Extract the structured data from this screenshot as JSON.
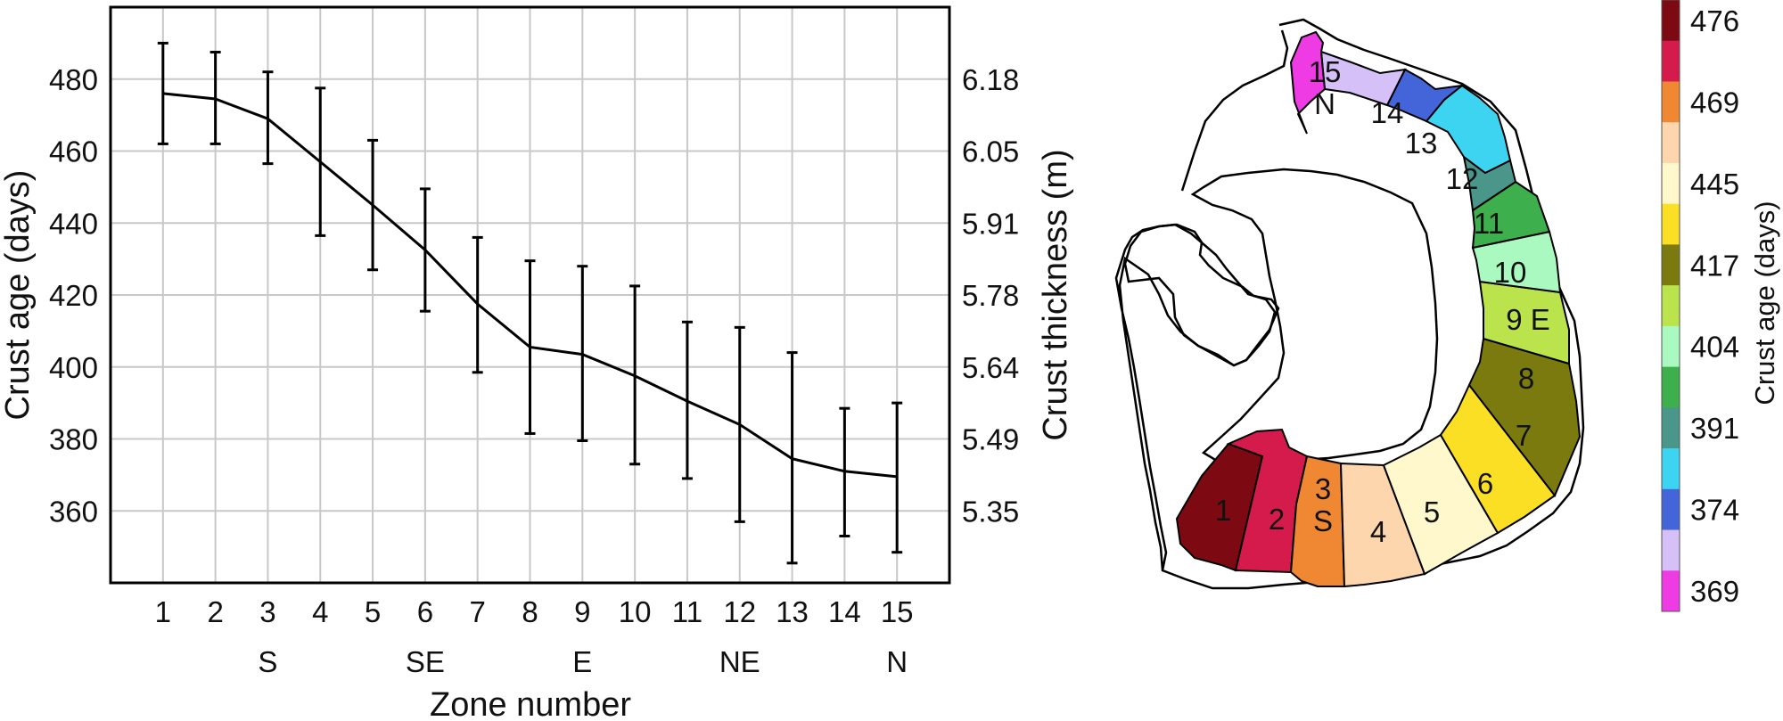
{
  "chart_data": [
    {
      "type": "line",
      "title": "",
      "xlabel": "Zone number",
      "ylabel": "Crust age (days)",
      "y2label": "Crust thickness (m)",
      "x": [
        1,
        2,
        3,
        4,
        5,
        6,
        7,
        8,
        9,
        10,
        11,
        12,
        13,
        14,
        15
      ],
      "x_ticks": [
        "1",
        "2",
        "3",
        "4",
        "5",
        "6",
        "7",
        "8",
        "9",
        "10",
        "11",
        "12",
        "13",
        "14",
        "15"
      ],
      "direction_labels": [
        {
          "x": 3,
          "label": "S"
        },
        {
          "x": 6,
          "label": "SE"
        },
        {
          "x": 9,
          "label": "E"
        },
        {
          "x": 12,
          "label": "NE"
        },
        {
          "x": 15,
          "label": "N"
        }
      ],
      "series": [
        {
          "name": "Crust age",
          "values": [
            476,
            474.5,
            469,
            457,
            445,
            432.5,
            417.5,
            405.5,
            403.5,
            397.5,
            390.5,
            384,
            374.5,
            371,
            369.5
          ],
          "error_low": [
            462,
            462,
            456.5,
            436.5,
            427,
            415.5,
            398.5,
            381.5,
            379.5,
            373,
            369,
            357,
            345.5,
            353,
            348.5
          ],
          "error_high": [
            490,
            487.5,
            482,
            477.5,
            463,
            449.5,
            436,
            429.5,
            428,
            422.5,
            412.5,
            411,
            404,
            388.5,
            390
          ]
        }
      ],
      "xlim": [
        0,
        16
      ],
      "ylim": [
        340,
        500
      ],
      "y_ticks": [
        "360",
        "380",
        "400",
        "420",
        "440",
        "460",
        "480"
      ],
      "y2_ticks": [
        "5.35",
        "5.49",
        "5.64",
        "5.78",
        "5.91",
        "6.05",
        "6.18"
      ],
      "grid": true
    },
    {
      "type": "heatmap",
      "title": "",
      "colorbar_label": "Crust age (days)",
      "colorbar_ticks": [
        "476",
        "469",
        "445",
        "417",
        "404",
        "391",
        "374",
        "369"
      ],
      "colorbar_colors": [
        "#7d0a12",
        "#d51b4c",
        "#f08732",
        "#fdd6ae",
        "#fff8cc",
        "#fadf24",
        "#7a7a0e",
        "#bbe34c",
        "#a9f9c0",
        "#3daf4c",
        "#4a968a",
        "#3dd4f2",
        "#4465d9",
        "#d6c0f8",
        "#ee3be4"
      ],
      "zones": [
        {
          "label": "1",
          "age": 476,
          "color": "#7d0a12"
        },
        {
          "label": "2",
          "age": 474.5,
          "color": "#d51b4c"
        },
        {
          "label": "3",
          "label2": "S",
          "age": 469,
          "color": "#f08732"
        },
        {
          "label": "4",
          "age": 457,
          "color": "#fdd6ae"
        },
        {
          "label": "5",
          "age": 445,
          "color": "#fff8cc"
        },
        {
          "label": "6",
          "age": 432.5,
          "color": "#fadf24"
        },
        {
          "label": "7",
          "age": 417.5,
          "color": "#7a7a0e"
        },
        {
          "label": "8",
          "age": 405.5,
          "color": "#bbe34c"
        },
        {
          "label": "9 E",
          "age": 403.5,
          "color": "#a9f9c0"
        },
        {
          "label": "10",
          "age": 397.5,
          "color": "#3daf4c"
        },
        {
          "label": "11",
          "age": 390.5,
          "color": "#4a968a"
        },
        {
          "label": "12",
          "age": 384,
          "color": "#3dd4f2"
        },
        {
          "label": "13",
          "age": 374.5,
          "color": "#4465d9"
        },
        {
          "label": "14",
          "age": 371,
          "color": "#d6c0f8"
        },
        {
          "label": "15",
          "label2": "N",
          "age": 369.5,
          "color": "#ee3be4"
        }
      ]
    }
  ]
}
